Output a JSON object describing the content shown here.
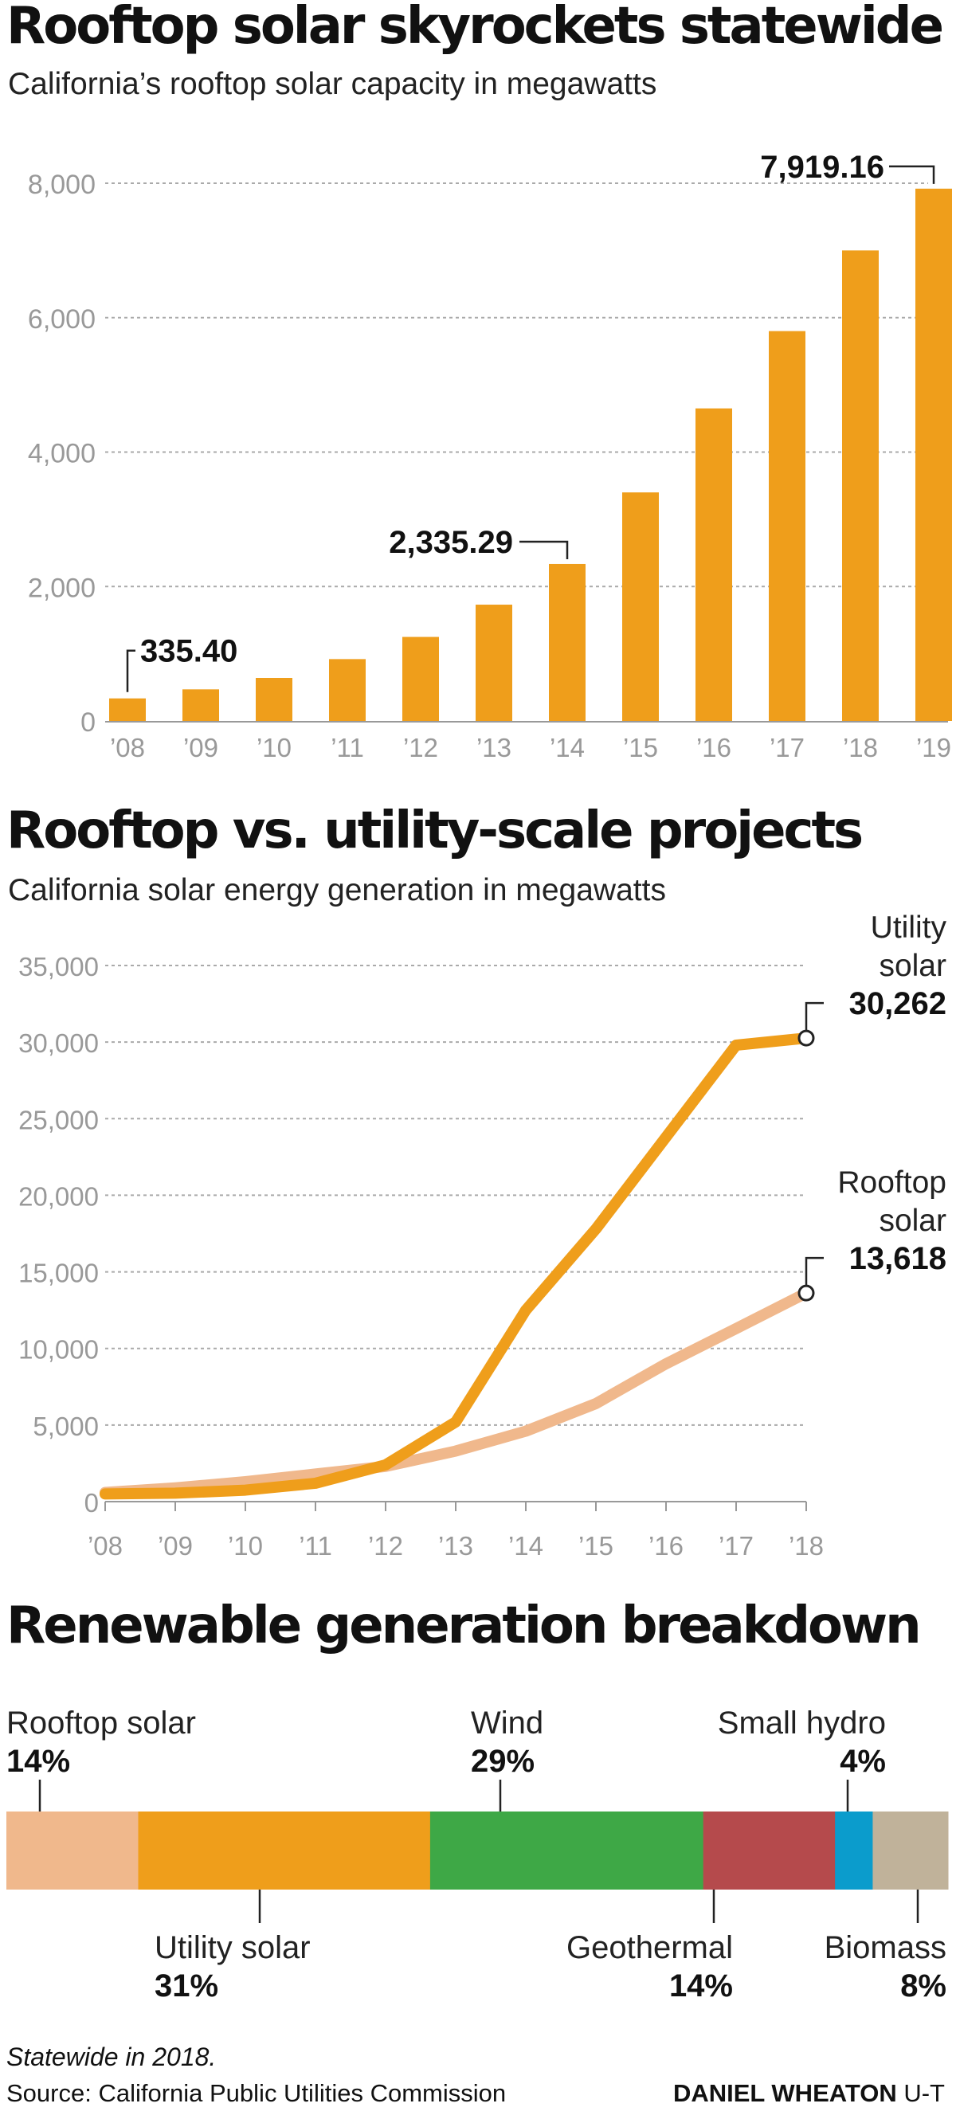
{
  "colors": {
    "utility": "#ef9e1b",
    "rooftop": "#f0b88c",
    "wind": "#3ea846",
    "geothermal": "#b54a4c",
    "small_hydro": "#0b9ccc",
    "biomass": "#c0b29a",
    "grid": "#aaaaaa",
    "axis_text": "#999999"
  },
  "chart_data": [
    {
      "type": "bar",
      "title": "Rooftop solar skyrockets statewide",
      "subtitle": "California’s rooftop solar capacity in megawatts",
      "categories": [
        "’08",
        "’09",
        "’10",
        "’11",
        "’12",
        "’13",
        "’14",
        "’15",
        "’16",
        "’17",
        "’18",
        "’19"
      ],
      "values": [
        335.4,
        470,
        640,
        920,
        1250,
        1730,
        2335.29,
        3400,
        4650,
        5800,
        7000,
        7919.16
      ],
      "yticks": [
        0,
        2000,
        4000,
        6000,
        8000
      ],
      "ytick_labels": [
        "0",
        "2,000",
        "4,000",
        "6,000",
        "8,000"
      ],
      "ylim": [
        0,
        8000
      ],
      "grid": true,
      "annotations": [
        {
          "index": 0,
          "label": "335.40"
        },
        {
          "index": 6,
          "label": "2,335.29"
        },
        {
          "index": 11,
          "label": "7,919.16"
        }
      ]
    },
    {
      "type": "line",
      "title": "Rooftop vs. utility-scale projects",
      "subtitle": "California solar energy generation in megawatts",
      "x": [
        "’08",
        "’09",
        "’10",
        "’11",
        "’12",
        "’13",
        "’14",
        "’15",
        "’16",
        "’17",
        "’18"
      ],
      "ylim": [
        0,
        35000
      ],
      "yticks": [
        0,
        5000,
        10000,
        15000,
        20000,
        25000,
        30000,
        35000
      ],
      "ytick_labels": [
        "0",
        "5,000",
        "10,000",
        "15,000",
        "20,000",
        "25,000",
        "30,000",
        "35,000"
      ],
      "grid": true,
      "series": [
        {
          "key": "rooftop",
          "name_lines": [
            "Rooftop",
            "solar"
          ],
          "end_label": "13,618",
          "values": [
            600,
            900,
            1300,
            1800,
            2300,
            3300,
            4600,
            6400,
            9000,
            11300,
            13618
          ]
        },
        {
          "key": "utility",
          "name_lines": [
            "Utility",
            "solar"
          ],
          "end_label": "30,262",
          "values": [
            500,
            550,
            750,
            1200,
            2400,
            5200,
            12500,
            17800,
            23800,
            29800,
            30262
          ]
        }
      ]
    },
    {
      "type": "bar",
      "subtype": "stacked-100",
      "title": "Renewable generation breakdown",
      "segments": [
        {
          "key": "rooftop",
          "name": "Rooftop solar",
          "label": "14%",
          "value": 14,
          "label_pos": "top"
        },
        {
          "key": "utility",
          "name": "Utility solar",
          "label": "31%",
          "value": 31,
          "label_pos": "bottom"
        },
        {
          "key": "wind",
          "name": "Wind",
          "label": "29%",
          "value": 29,
          "label_pos": "top"
        },
        {
          "key": "geothermal",
          "name": "Geothermal",
          "label": "14%",
          "value": 14,
          "label_pos": "bottom"
        },
        {
          "key": "small_hydro",
          "name": "Small hydro",
          "label": "4%",
          "value": 4,
          "label_pos": "top"
        },
        {
          "key": "biomass",
          "name": "Biomass",
          "label": "8%",
          "value": 8,
          "label_pos": "bottom"
        }
      ]
    }
  ],
  "footer": {
    "note": "Statewide in 2018.",
    "source": "Source: California Public Utilities Commission",
    "credit_name": "DANIEL WHEATON",
    "credit_org": "U-T"
  }
}
